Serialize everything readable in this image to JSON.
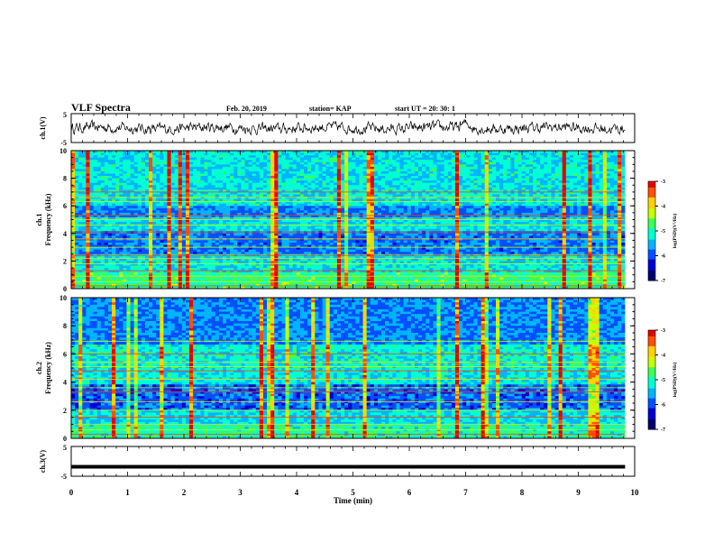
{
  "header": {
    "title": "VLF Spectra",
    "date": "Feb. 20, 2019",
    "station": "station= KAP",
    "start": "start  UT  =   20: 30: 1"
  },
  "chart_data": [
    {
      "type": "line",
      "panel": "ch1-waveform",
      "ylabel": "ch.1(V)",
      "ylim": [
        -5,
        5
      ],
      "yticks": [
        "5",
        "-5"
      ],
      "xlim": [
        0,
        10
      ],
      "description_of_data": "noisy waveform fluctuating roughly between -1.5 and 1.5 V over 0-9.8 min",
      "series": [
        {
          "values": [
            0.2,
            -0.6,
            0.8,
            -0.3,
            1.1,
            -0.9,
            0.4,
            0.0,
            -1.2,
            0.7,
            0.3,
            -0.5,
            1.0,
            -0.2,
            0.5,
            -1.0,
            0.9,
            0.1,
            -0.7,
            0.6
          ]
        }
      ]
    },
    {
      "type": "heatmap",
      "panel": "ch1-spectrogram",
      "ylabel": "ch.1\nFrequency (kHz)",
      "ylabel_line1": "ch.1",
      "ylabel_line2": "Frequency (kHz)",
      "ylim": [
        0,
        10
      ],
      "yticks": [
        "10",
        "8",
        "6",
        "4",
        "2",
        "0"
      ],
      "xlim": [
        0,
        10
      ],
      "colorbar": {
        "label": "log(PSD)(V²/Hz)",
        "range": [
          -7,
          -3
        ],
        "ticks": [
          "-3",
          "-4",
          "-5",
          "-6",
          "-7"
        ]
      }
    },
    {
      "type": "heatmap",
      "panel": "ch2-spectrogram",
      "ylabel_line1": "ch.2",
      "ylabel_line2": "Frequency (kHz)",
      "ylim": [
        0,
        10
      ],
      "yticks": [
        "10",
        "8",
        "6",
        "4",
        "2",
        "0"
      ],
      "xlim": [
        0,
        10
      ],
      "colorbar": {
        "label": "log(PSD)(V²/Hz)",
        "range": [
          -7,
          -3
        ],
        "ticks": [
          "-3",
          "-4",
          "-5",
          "-6",
          "-7"
        ]
      }
    },
    {
      "type": "line",
      "panel": "ch3-waveform",
      "ylabel": "ch.3(V)",
      "ylim": [
        -5,
        5
      ],
      "yticks": [
        "5",
        "-5"
      ],
      "xlim": [
        0,
        10
      ],
      "series": [
        {
          "values": [
            -1.8,
            -1.8
          ]
        }
      ]
    }
  ],
  "xaxis": {
    "label": "Time (min)",
    "ticks": [
      "0",
      "1",
      "2",
      "3",
      "4",
      "5",
      "6",
      "7",
      "8",
      "9",
      "10"
    ]
  },
  "colors": {
    "colormap": [
      "#00006e",
      "#0000d0",
      "#0050ff",
      "#00b4ff",
      "#00ffd2",
      "#3cff5a",
      "#c8ff00",
      "#ffd200",
      "#ff5000",
      "#e60000",
      "#ffffff"
    ]
  }
}
